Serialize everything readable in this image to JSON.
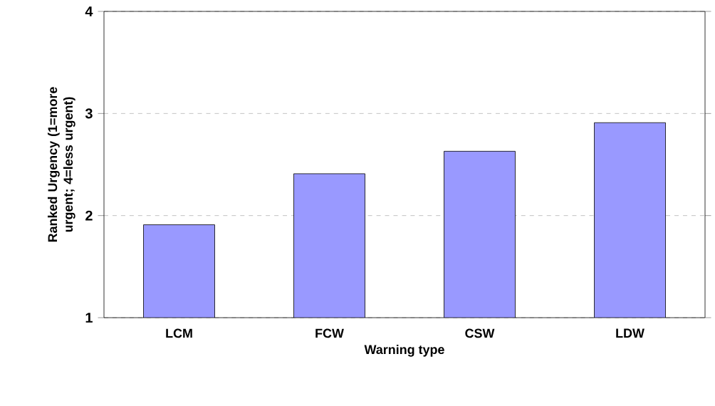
{
  "chart_data": {
    "type": "bar",
    "xlabel": "Warning type",
    "ylabel": "Ranked Urgency (1=more urgent; 4=less urgent)",
    "categories": [
      "LCM",
      "FCW",
      "CSW",
      "LDW"
    ],
    "values": [
      1.91,
      2.41,
      2.63,
      2.91
    ],
    "color": "#9999ff",
    "ylim": [
      1,
      4
    ],
    "yticks": [
      1,
      2,
      3,
      4
    ],
    "grid": "y",
    "legend": false
  }
}
